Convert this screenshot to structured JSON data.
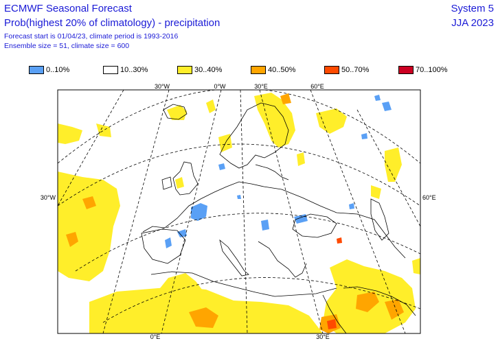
{
  "header": {
    "title": "ECMWF Seasonal Forecast",
    "subtitle": "Prob(highest 20% of climatology) - precipitation",
    "info_line1": "Forecast start is 01/04/23, climate period is 1993-2016",
    "info_line2": "Ensemble size = 51, climate size = 600",
    "system": "System 5",
    "season": "JJA 2023"
  },
  "legend": [
    {
      "label": "0..10%",
      "color": "#5aa0f5"
    },
    {
      "label": "10..30%",
      "color": "#ffffff"
    },
    {
      "label": "30..40%",
      "color": "#ffee2a"
    },
    {
      "label": "40..50%",
      "color": "#ffa500"
    },
    {
      "label": "50..70%",
      "color": "#ff4a00"
    },
    {
      "label": "70..100%",
      "color": "#cc0022"
    }
  ],
  "map": {
    "tick_labels": {
      "top_30w": "30°W",
      "top_0w": "0°W",
      "top_30e": "30°E",
      "top_60e": "60°E",
      "left_30w": "30°W",
      "right_60e": "60°E",
      "bottom_0e": "0°E",
      "bottom_30e": "30°E"
    },
    "colors": {
      "coast": "#000000",
      "grid": "#000000"
    }
  }
}
